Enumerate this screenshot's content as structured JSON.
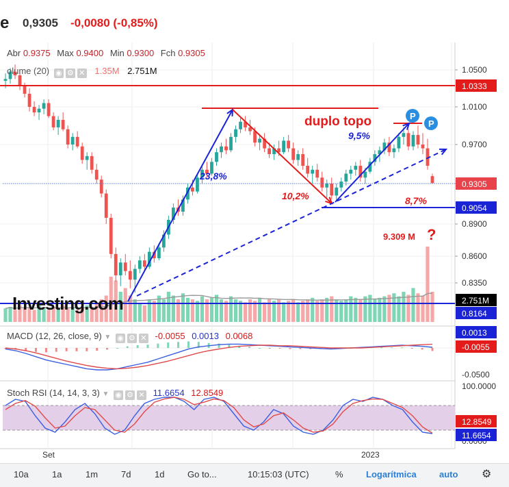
{
  "header": {
    "symbol_partial": "e",
    "price": "0,9305",
    "change": "-0,0080 (-0,85%)"
  },
  "ohlc": {
    "abr_label": "Abr",
    "abr": "0.9375",
    "max_label": "Max",
    "max": "0.9400",
    "min_label": "Min",
    "min": "0.9300",
    "fch_label": "Fch",
    "fch": "0.9305"
  },
  "volume": {
    "label": "olume (20)",
    "v1": "1.35M",
    "v2": "2.751M"
  },
  "macd": {
    "label": "MACD (12, 26, close, 9)",
    "v1": "-0.0055",
    "v2": "0.0013",
    "v3": "0.0068"
  },
  "stoch": {
    "label": "Stoch RSI (14, 14, 3, 3)",
    "v1": "11.6654",
    "v2": "12.8549"
  },
  "price_axis": [
    "1.0500",
    "1.0100",
    "0.9700",
    "0.9300",
    "0.8900",
    "0.8600",
    "0.8350"
  ],
  "price_tags": [
    {
      "text": "1.0333",
      "bg": "#e31b1b",
      "color": "#ffffff"
    },
    {
      "text": "0.9305",
      "bg": "#e8434a",
      "color": "#ffffff"
    },
    {
      "text": "0.9054",
      "bg": "#1a23d6",
      "color": "#ffffff"
    },
    {
      "text": "2.751M",
      "bg": "#000000",
      "color": "#ffffff"
    },
    {
      "text": "0.8164",
      "bg": "#1a23d6",
      "color": "#ffffff"
    }
  ],
  "macd_axis": [
    "-0.0500"
  ],
  "macd_tags": [
    {
      "text": "0.0013",
      "bg": "#1a23d6",
      "color": "#ffffff"
    },
    {
      "text": "-0.0055",
      "bg": "#e31b1b",
      "color": "#ffffff"
    }
  ],
  "stoch_axis": [
    "100.0000",
    "0.0000"
  ],
  "stoch_tags": [
    {
      "text": "12.8549",
      "bg": "#e31b1b",
      "color": "#ffffff"
    },
    {
      "text": "11.6654",
      "bg": "#1a23d6",
      "color": "#ffffff"
    }
  ],
  "time_axis": [
    "Set",
    "2023"
  ],
  "annotations": {
    "duplo_topo": "duplo topo",
    "pct_238": "23,8%",
    "pct_102": "10,2%",
    "pct_95": "9,5%",
    "pct_87": "8,7%",
    "vol_note": "9.309 M",
    "question": "?",
    "p1": "P",
    "p2": "P"
  },
  "logo": "Investing.com",
  "toolbar": [
    "10a",
    "1a",
    "1m",
    "7d",
    "1d",
    "Go to...",
    "10:15:03 (UTC)",
    "%",
    "Logarítmica",
    "auto"
  ],
  "colors": {
    "up": "#26a69a",
    "down": "#ef5350",
    "line_red": "#e31b1b",
    "line_blue": "#1a23d6",
    "stoch_band": "#e4cfe8"
  },
  "chart_data": {
    "type": "candlestick",
    "y_scale": "log",
    "ylim": [
      0.8164,
      1.06
    ],
    "ohlc": [
      [
        1.038,
        1.046,
        1.03,
        1.04
      ],
      [
        1.04,
        1.052,
        1.035,
        1.048
      ],
      [
        1.048,
        1.056,
        1.04,
        1.044
      ],
      [
        1.044,
        1.05,
        1.028,
        1.032
      ],
      [
        1.032,
        1.036,
        1.02,
        1.024
      ],
      [
        1.024,
        1.03,
        1.005,
        1.01
      ],
      [
        1.01,
        1.016,
        1.0,
        1.004
      ],
      [
        1.004,
        1.012,
        0.996,
        1.008
      ],
      [
        1.008,
        1.018,
        1.002,
        1.014
      ],
      [
        1.014,
        1.018,
        0.998,
        1.0
      ],
      [
        1.0,
        1.004,
        0.985,
        0.988
      ],
      [
        0.988,
        1.0,
        0.98,
        0.996
      ],
      [
        0.996,
        1.004,
        0.984,
        0.986
      ],
      [
        0.986,
        0.99,
        0.966,
        0.97
      ],
      [
        0.97,
        0.982,
        0.964,
        0.978
      ],
      [
        0.978,
        0.984,
        0.966,
        0.968
      ],
      [
        0.968,
        0.972,
        0.95,
        0.954
      ],
      [
        0.954,
        0.962,
        0.944,
        0.958
      ],
      [
        0.958,
        0.962,
        0.94,
        0.944
      ],
      [
        0.944,
        0.95,
        0.93,
        0.934
      ],
      [
        0.934,
        0.938,
        0.916,
        0.92
      ],
      [
        0.92,
        0.924,
        0.89,
        0.896
      ],
      [
        0.896,
        0.9,
        0.858,
        0.862
      ],
      [
        0.862,
        0.868,
        0.836,
        0.842
      ],
      [
        0.842,
        0.858,
        0.832,
        0.854
      ],
      [
        0.854,
        0.862,
        0.842,
        0.846
      ],
      [
        0.846,
        0.856,
        0.83,
        0.838
      ],
      [
        0.838,
        0.852,
        0.826,
        0.848
      ],
      [
        0.848,
        0.86,
        0.844,
        0.856
      ],
      [
        0.856,
        0.862,
        0.846,
        0.85
      ],
      [
        0.85,
        0.868,
        0.848,
        0.864
      ],
      [
        0.864,
        0.87,
        0.854,
        0.858
      ],
      [
        0.858,
        0.872,
        0.856,
        0.868
      ],
      [
        0.868,
        0.884,
        0.864,
        0.88
      ],
      [
        0.88,
        0.898,
        0.876,
        0.894
      ],
      [
        0.894,
        0.91,
        0.89,
        0.906
      ],
      [
        0.906,
        0.914,
        0.898,
        0.902
      ],
      [
        0.902,
        0.918,
        0.898,
        0.914
      ],
      [
        0.914,
        0.93,
        0.91,
        0.926
      ],
      [
        0.926,
        0.934,
        0.918,
        0.922
      ],
      [
        0.922,
        0.94,
        0.92,
        0.936
      ],
      [
        0.936,
        0.948,
        0.93,
        0.944
      ],
      [
        0.944,
        0.952,
        0.936,
        0.94
      ],
      [
        0.94,
        0.956,
        0.938,
        0.952
      ],
      [
        0.952,
        0.966,
        0.948,
        0.962
      ],
      [
        0.962,
        0.972,
        0.956,
        0.968
      ],
      [
        0.968,
        0.976,
        0.96,
        0.964
      ],
      [
        0.964,
        0.982,
        0.962,
        0.978
      ],
      [
        0.978,
        0.99,
        0.972,
        0.986
      ],
      [
        0.986,
        0.998,
        0.982,
        0.994
      ],
      [
        0.994,
        1.0,
        0.984,
        0.988
      ],
      [
        0.988,
        0.996,
        0.98,
        0.984
      ],
      [
        0.984,
        0.988,
        0.968,
        0.972
      ],
      [
        0.972,
        0.98,
        0.964,
        0.976
      ],
      [
        0.976,
        0.982,
        0.962,
        0.966
      ],
      [
        0.966,
        0.972,
        0.956,
        0.96
      ],
      [
        0.96,
        0.97,
        0.954,
        0.966
      ],
      [
        0.966,
        0.974,
        0.958,
        0.962
      ],
      [
        0.962,
        0.978,
        0.96,
        0.974
      ],
      [
        0.974,
        0.98,
        0.962,
        0.966
      ],
      [
        0.966,
        0.972,
        0.95,
        0.954
      ],
      [
        0.954,
        0.964,
        0.948,
        0.96
      ],
      [
        0.96,
        0.966,
        0.944,
        0.948
      ],
      [
        0.948,
        0.956,
        0.936,
        0.94
      ],
      [
        0.94,
        0.948,
        0.93,
        0.944
      ],
      [
        0.944,
        0.95,
        0.932,
        0.936
      ],
      [
        0.936,
        0.942,
        0.922,
        0.926
      ],
      [
        0.926,
        0.934,
        0.916,
        0.93
      ],
      [
        0.93,
        0.936,
        0.914,
        0.918
      ],
      [
        0.918,
        0.93,
        0.912,
        0.926
      ],
      [
        0.926,
        0.936,
        0.922,
        0.932
      ],
      [
        0.932,
        0.944,
        0.928,
        0.94
      ],
      [
        0.94,
        0.948,
        0.934,
        0.944
      ],
      [
        0.944,
        0.952,
        0.938,
        0.948
      ],
      [
        0.948,
        0.954,
        0.932,
        0.936
      ],
      [
        0.936,
        0.946,
        0.93,
        0.942
      ],
      [
        0.942,
        0.956,
        0.94,
        0.952
      ],
      [
        0.952,
        0.964,
        0.948,
        0.96
      ],
      [
        0.96,
        0.968,
        0.952,
        0.964
      ],
      [
        0.964,
        0.976,
        0.96,
        0.972
      ],
      [
        0.972,
        0.978,
        0.958,
        0.962
      ],
      [
        0.962,
        0.97,
        0.956,
        0.966
      ],
      [
        0.966,
        0.982,
        0.962,
        0.978
      ],
      [
        0.978,
        0.988,
        0.97,
        0.982
      ],
      [
        0.982,
        0.986,
        0.964,
        0.968
      ],
      [
        0.968,
        0.984,
        0.964,
        0.98
      ],
      [
        0.98,
        0.99,
        0.966,
        0.97
      ],
      [
        0.97,
        0.982,
        0.96,
        0.966
      ],
      [
        0.966,
        0.976,
        0.944,
        0.948
      ],
      [
        0.9375,
        0.94,
        0.93,
        0.9305
      ]
    ],
    "volume_relative": [
      0.18,
      0.2,
      0.16,
      0.22,
      0.18,
      0.2,
      0.16,
      0.22,
      0.18,
      0.16,
      0.2,
      0.18,
      0.22,
      0.18,
      0.2,
      0.16,
      0.18,
      0.22,
      0.2,
      0.24,
      0.3,
      0.35,
      0.6,
      0.55,
      0.4,
      0.45,
      0.35,
      0.3,
      0.25,
      0.22,
      0.3,
      0.28,
      0.35,
      0.3,
      0.4,
      0.35,
      0.3,
      0.38,
      0.32,
      0.3,
      0.28,
      0.34,
      0.3,
      0.32,
      0.36,
      0.3,
      0.28,
      0.34,
      0.3,
      0.28,
      0.26,
      0.3,
      0.28,
      0.32,
      0.26,
      0.3,
      0.28,
      0.3,
      0.26,
      0.28,
      0.3,
      0.26,
      0.28,
      0.3,
      0.32,
      0.28,
      0.3,
      0.32,
      0.34,
      0.3,
      0.28,
      0.3,
      0.34,
      0.32,
      0.3,
      0.34,
      0.36,
      0.3,
      0.32,
      0.34,
      0.36,
      0.38,
      0.34,
      0.4,
      0.36,
      0.45,
      0.38,
      0.35,
      1.0,
      0.4
    ],
    "macd": [
      -0.002,
      -0.005,
      -0.01,
      -0.016,
      -0.022,
      -0.026,
      -0.03,
      -0.034,
      -0.038,
      -0.04,
      -0.04,
      -0.038,
      -0.034,
      -0.03,
      -0.026,
      -0.02,
      -0.014,
      -0.008,
      -0.002,
      0.002,
      0.004,
      0.006,
      0.007,
      0.007,
      0.006,
      0.005,
      0.004,
      0.003,
      0.002,
      0.001,
      0.0,
      -0.001,
      -0.002,
      -0.001,
      0.0,
      0.001,
      0.002,
      0.003,
      0.004,
      0.005,
      0.004,
      0.003,
      0.0013
    ],
    "macd_signal": [
      0.0,
      -0.002,
      -0.005,
      -0.009,
      -0.014,
      -0.019,
      -0.024,
      -0.028,
      -0.032,
      -0.035,
      -0.037,
      -0.038,
      -0.037,
      -0.035,
      -0.032,
      -0.028,
      -0.024,
      -0.019,
      -0.014,
      -0.009,
      -0.005,
      -0.002,
      0.001,
      0.003,
      0.004,
      0.005,
      0.005,
      0.004,
      0.004,
      0.003,
      0.002,
      0.001,
      0.0,
      0.0,
      0.0,
      0.0,
      0.001,
      0.002,
      0.003,
      0.004,
      0.005,
      0.006,
      0.0068
    ],
    "stoch_k": [
      80,
      95,
      90,
      55,
      25,
      15,
      40,
      70,
      85,
      60,
      25,
      10,
      20,
      55,
      85,
      95,
      100,
      100,
      90,
      70,
      95,
      100,
      90,
      60,
      30,
      20,
      40,
      70,
      60,
      30,
      15,
      10,
      20,
      45,
      80,
      95,
      90,
      100,
      95,
      80,
      70,
      40,
      15,
      11.6654
    ],
    "stoch_d": [
      70,
      85,
      92,
      78,
      50,
      25,
      30,
      55,
      75,
      70,
      45,
      20,
      15,
      35,
      65,
      88,
      96,
      100,
      95,
      82,
      88,
      96,
      92,
      75,
      45,
      28,
      35,
      55,
      62,
      45,
      25,
      15,
      18,
      35,
      65,
      85,
      92,
      96,
      95,
      85,
      75,
      55,
      28,
      12.8549
    ]
  }
}
